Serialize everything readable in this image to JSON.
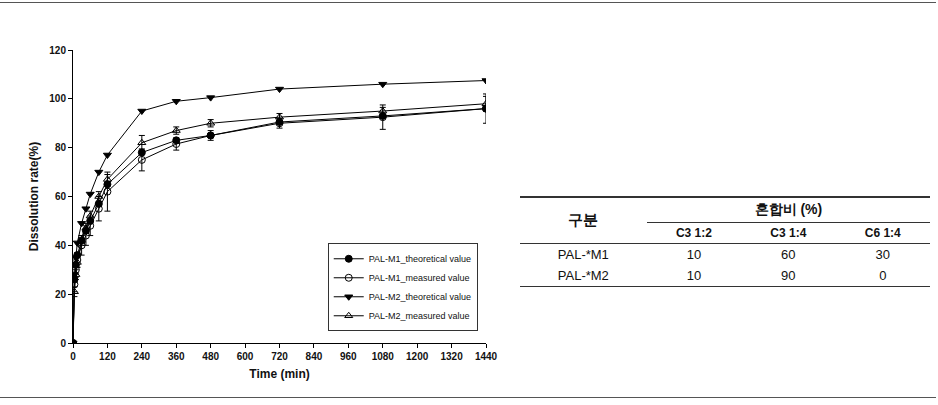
{
  "chart_data": {
    "type": "line",
    "x_label": "Time (min)",
    "y_label": "Dissolution rate(%)",
    "x": [
      0,
      5,
      10,
      15,
      30,
      45,
      60,
      90,
      120,
      240,
      360,
      480,
      720,
      1080,
      1440
    ],
    "series": [
      {
        "name": "PAL-M1_theoretical value",
        "color": "#000000",
        "marker": "circle",
        "line_style": "solid",
        "values": [
          0,
          26,
          32,
          36,
          42,
          46,
          50,
          57,
          65,
          78,
          83,
          85,
          90.5,
          93,
          96
        ]
      },
      {
        "name": "PAL-M1_measured value",
        "color": "#000000",
        "marker": "circle-open",
        "line_style": "solid",
        "values": [
          0,
          24,
          30,
          34,
          40,
          44,
          48,
          55,
          62,
          75,
          81.5,
          85,
          90,
          92.5,
          96
        ],
        "error": [
          0,
          3,
          3,
          3,
          4,
          4,
          4,
          5,
          8,
          4.5,
          2.5,
          2,
          2,
          5,
          6
        ]
      },
      {
        "name": "PAL-M2_theoretical value",
        "color": "#000000",
        "marker": "triangle-down",
        "line_style": "solid",
        "values": [
          0,
          28,
          35,
          41,
          49,
          55,
          61,
          70,
          77,
          95,
          99,
          100.5,
          104,
          106,
          107.5
        ]
      },
      {
        "name": "PAL-M2_measured value",
        "color": "#000000",
        "marker": "triangle-up-open",
        "line_style": "solid",
        "values": [
          0,
          21,
          28,
          33,
          42,
          47,
          52,
          60,
          67,
          82,
          87,
          90,
          92.5,
          95,
          98
        ],
        "error": [
          0,
          2,
          2,
          2,
          2,
          2,
          2,
          2,
          2,
          3,
          1.5,
          1.5,
          1.5,
          1.5,
          3
        ]
      }
    ],
    "xlim": [
      0,
      1440
    ],
    "xticks": [
      0,
      120,
      240,
      360,
      480,
      600,
      720,
      840,
      960,
      1080,
      1200,
      1320,
      1440
    ],
    "ylim": [
      0,
      120
    ],
    "yticks": [
      0,
      20,
      40,
      60,
      80,
      100,
      120
    ],
    "grid": false,
    "legend": "bottom right"
  },
  "table": {
    "header": {
      "row_label": "구분",
      "group": "혼합비 (%)",
      "columns": [
        "C3 1:2",
        "C3 1:4",
        "C6 1:4"
      ]
    },
    "rows": [
      [
        "PAL-*M1",
        "10",
        "60",
        "30"
      ],
      [
        "PAL-*M2",
        "10",
        "90",
        "0"
      ]
    ]
  }
}
